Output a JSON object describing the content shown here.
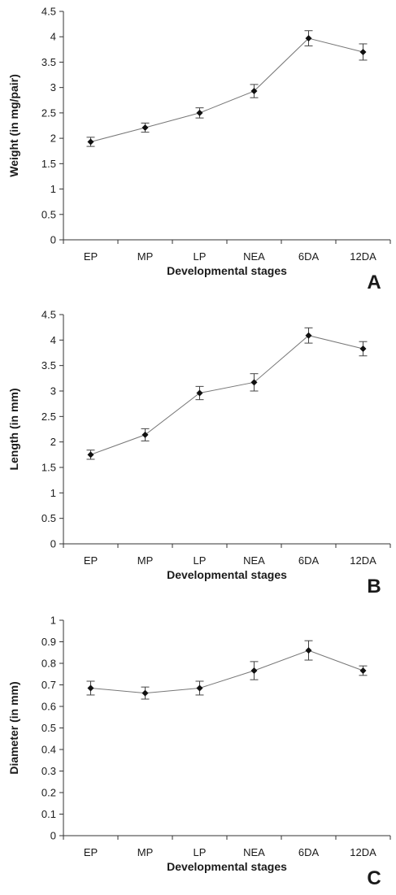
{
  "chart_data": [
    {
      "type": "line",
      "panel_label": "A",
      "categories": [
        "EP",
        "MP",
        "LP",
        "NEA",
        "6DA",
        "12DA"
      ],
      "values": [
        1.93,
        2.21,
        2.5,
        2.93,
        3.97,
        3.7
      ],
      "errors": [
        0.09,
        0.09,
        0.1,
        0.13,
        0.15,
        0.16
      ],
      "xlabel": "Developmental stages",
      "ylabel": "Weight (in mg/pair)",
      "ylim": [
        0,
        4.5
      ],
      "yticks": [
        "0",
        "0.5",
        "1",
        "1.5",
        "2",
        "2.5",
        "3",
        "3.5",
        "4",
        "4.5"
      ],
      "grid": false,
      "marker": "diamond"
    },
    {
      "type": "line",
      "panel_label": "B",
      "categories": [
        "EP",
        "MP",
        "LP",
        "NEA",
        "6DA",
        "12DA"
      ],
      "values": [
        1.75,
        2.14,
        2.96,
        3.17,
        4.09,
        3.83
      ],
      "errors": [
        0.09,
        0.12,
        0.13,
        0.17,
        0.15,
        0.14
      ],
      "xlabel": "Developmental stages",
      "ylabel": "Length (in mm)",
      "ylim": [
        0,
        4.5
      ],
      "yticks": [
        "0",
        "0.5",
        "1",
        "1.5",
        "2",
        "2.5",
        "3",
        "3.5",
        "4",
        "4.5"
      ],
      "grid": false,
      "marker": "diamond"
    },
    {
      "type": "line",
      "panel_label": "C",
      "categories": [
        "EP",
        "MP",
        "LP",
        "NEA",
        "6DA",
        "12DA"
      ],
      "values": [
        0.685,
        0.662,
        0.685,
        0.766,
        0.86,
        0.766
      ],
      "errors": [
        0.032,
        0.028,
        0.032,
        0.042,
        0.045,
        0.022
      ],
      "xlabel": "Developmental stages",
      "ylabel": "Diameter (in mm)",
      "ylim": [
        0,
        1
      ],
      "yticks": [
        "0",
        "0.1",
        "0.2",
        "0.3",
        "0.4",
        "0.5",
        "0.6",
        "0.7",
        "0.8",
        "0.9",
        "1"
      ],
      "grid": false,
      "marker": "diamond"
    }
  ]
}
